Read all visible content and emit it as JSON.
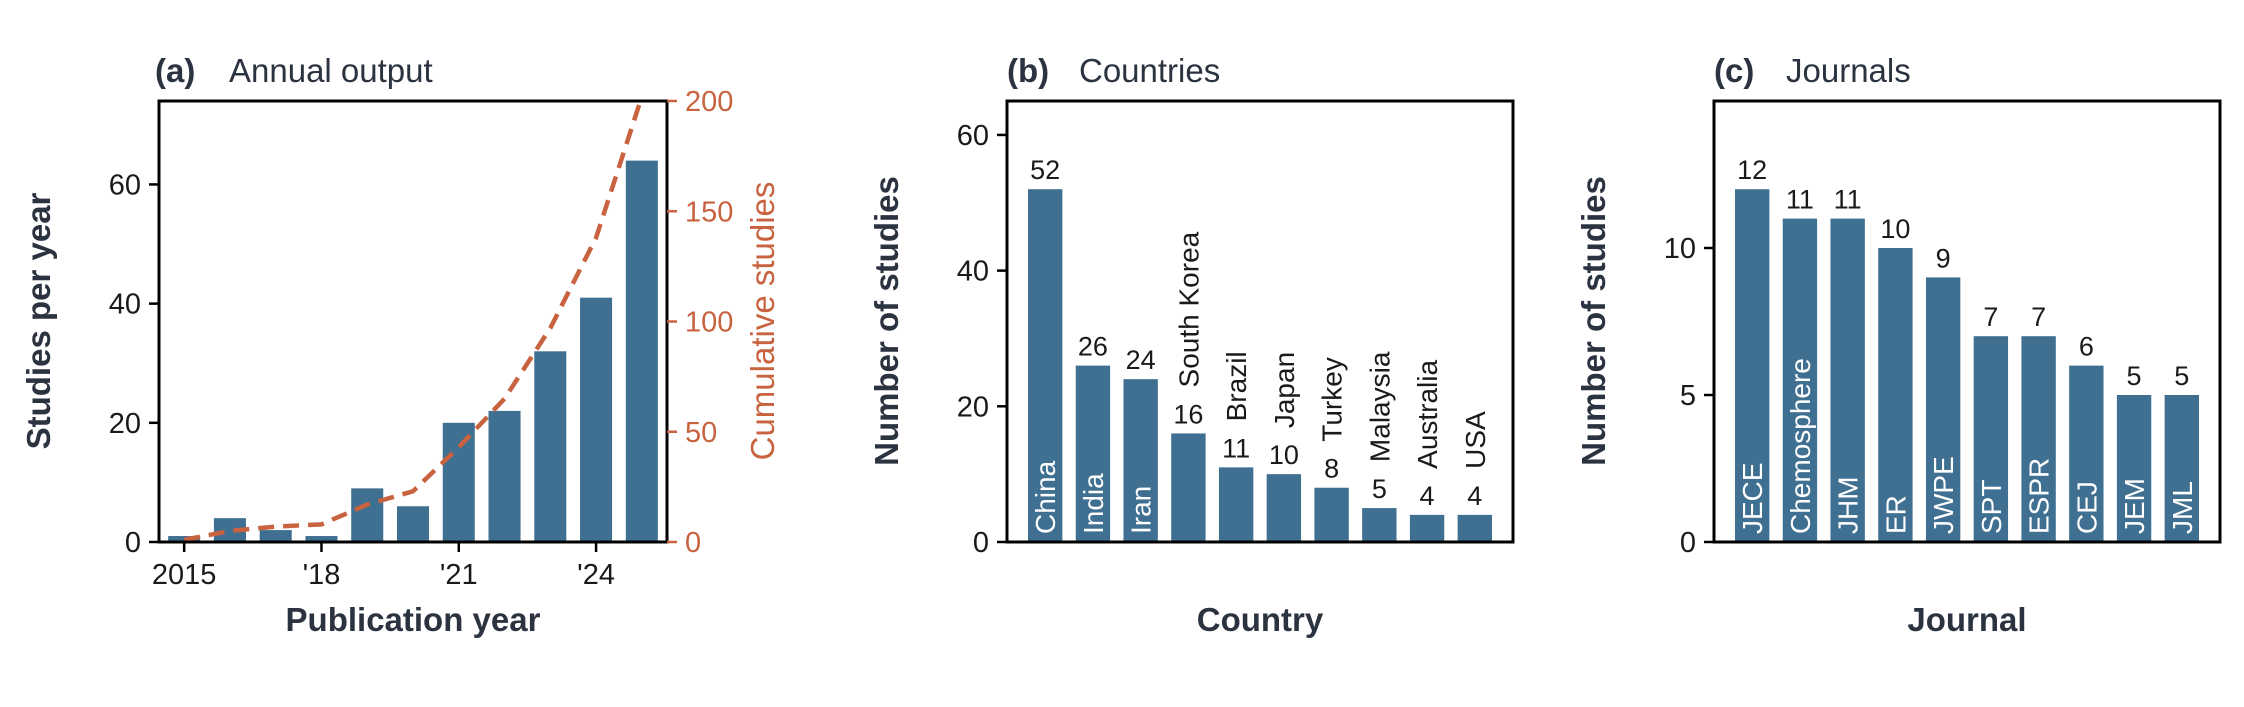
{
  "colors": {
    "bar": "#3f6f91",
    "cumulative": "#c8623f",
    "axis": "#000000",
    "text": "#2c3340"
  },
  "chart_data": [
    {
      "type": "bar",
      "panel_label": "(a)",
      "title": "Annual output",
      "xlabel": "Publication year",
      "ylabel": "Studies per year",
      "y2label": "Cumulative studies",
      "x": [
        2015,
        2016,
        2017,
        2018,
        2019,
        2020,
        2021,
        2022,
        2023,
        2024,
        2025
      ],
      "values": [
        1,
        4,
        2,
        1,
        9,
        6,
        20,
        22,
        32,
        41,
        64
      ],
      "cumulative": [
        1,
        5,
        7,
        8,
        17,
        23,
        43,
        65,
        97,
        138,
        202
      ],
      "xticks": [
        2015,
        2018,
        2021,
        2024
      ],
      "xtick_labels": [
        "2015",
        "'18",
        "'21",
        "'24"
      ],
      "ylim": [
        0,
        74
      ],
      "yticks": [
        0,
        20,
        40,
        60
      ],
      "y2lim": [
        0,
        200
      ],
      "y2ticks": [
        0,
        50,
        100,
        150,
        200
      ],
      "series": [
        {
          "values": [
            1,
            4,
            2,
            1,
            9,
            6,
            20,
            22,
            32,
            41,
            64
          ]
        },
        {
          "values": [
            1,
            5,
            7,
            8,
            17,
            23,
            43,
            65,
            97,
            138,
            202
          ]
        }
      ]
    },
    {
      "type": "bar",
      "panel_label": "(b)",
      "title": "Countries",
      "xlabel": "Country",
      "ylabel": "Number of studies",
      "categories": [
        "China",
        "India",
        "Iran",
        "South Korea",
        "Brazil",
        "Japan",
        "Turkey",
        "Malaysia",
        "Australia",
        "USA"
      ],
      "values": [
        52,
        26,
        24,
        16,
        11,
        10,
        8,
        5,
        4,
        4
      ],
      "ylim": [
        0,
        65
      ],
      "yticks": [
        0,
        20,
        40,
        60
      ]
    },
    {
      "type": "bar",
      "panel_label": "(c)",
      "title": "Journals",
      "xlabel": "Journal",
      "ylabel": "Number of studies",
      "categories": [
        "JECE",
        "Chemosphere",
        "JHM",
        "ER",
        "JWPE",
        "SPT",
        "ESPR",
        "CEJ",
        "JEM",
        "JML"
      ],
      "values": [
        12,
        11,
        11,
        10,
        9,
        7,
        7,
        6,
        5,
        5
      ],
      "ylim": [
        0,
        15
      ],
      "yticks": [
        0,
        5,
        10
      ]
    }
  ]
}
